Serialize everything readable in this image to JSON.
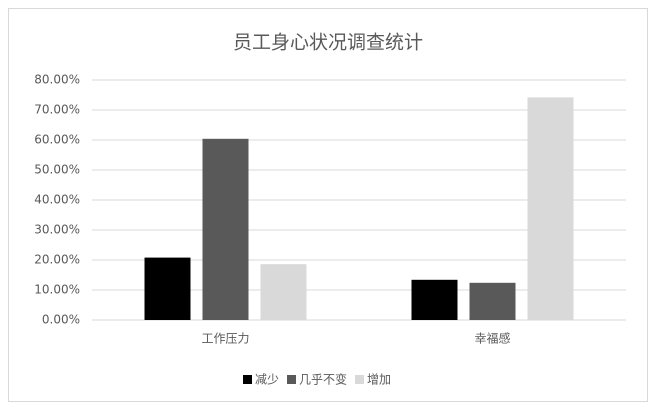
{
  "chart_data": {
    "type": "bar",
    "title": "员工身心状况调查统计",
    "categories": [
      "工作压力",
      "幸福感"
    ],
    "series": [
      {
        "name": "减少",
        "color": "#000000",
        "values": [
          20.8,
          13.4
        ]
      },
      {
        "name": "几乎不变",
        "color": "#595959",
        "values": [
          60.4,
          12.4
        ]
      },
      {
        "name": "增加",
        "color": "#d9d9d9",
        "values": [
          18.6,
          74.2
        ]
      }
    ],
    "ylim": [
      0,
      80
    ],
    "yticks": [
      {
        "value": 0,
        "label": "0.00%"
      },
      {
        "value": 10,
        "label": "10.00%"
      },
      {
        "value": 20,
        "label": "20.00%"
      },
      {
        "value": 30,
        "label": "30.00%"
      },
      {
        "value": 40,
        "label": "40.00%"
      },
      {
        "value": 50,
        "label": "50.00%"
      },
      {
        "value": 60,
        "label": "60.00%"
      },
      {
        "value": 70,
        "label": "70.00%"
      },
      {
        "value": 80,
        "label": "80.00%"
      }
    ],
    "grid": true,
    "legend": "bottom"
  }
}
